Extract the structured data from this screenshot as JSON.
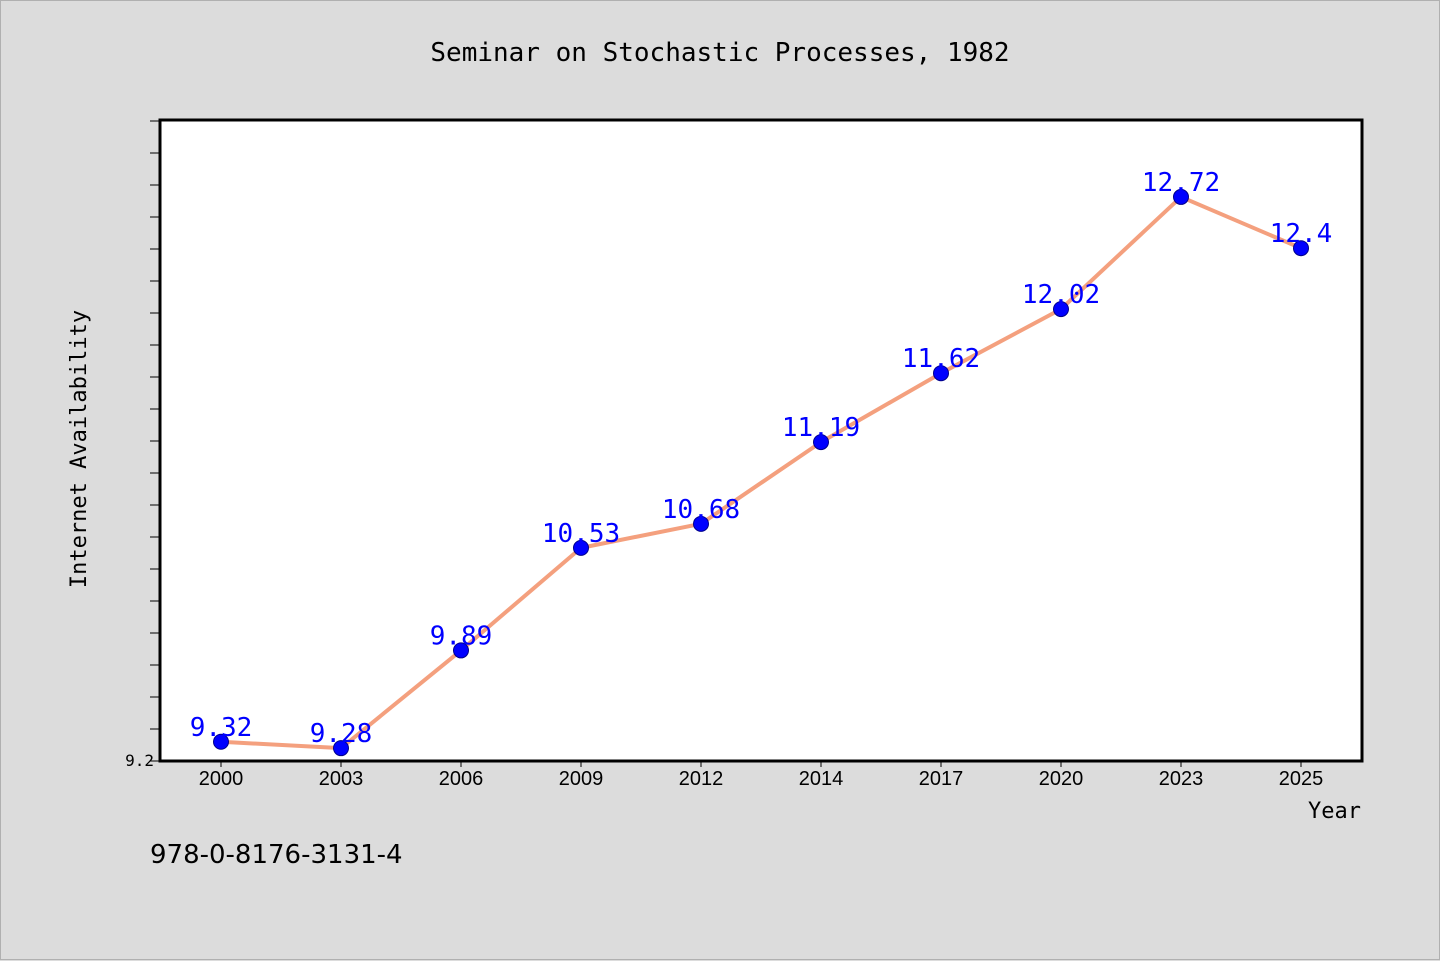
{
  "chart_data": {
    "type": "line",
    "title": "Seminar on Stochastic Processes, 1982",
    "xlabel": "Year",
    "ylabel": "Internet Availability",
    "categories": [
      "2000",
      "2003",
      "2006",
      "2009",
      "2012",
      "2014",
      "2017",
      "2020",
      "2023",
      "2025"
    ],
    "series": [
      {
        "values": [
          9.32,
          9.28,
          9.89,
          10.53,
          10.68,
          11.19,
          11.62,
          12.02,
          12.72,
          12.4
        ]
      }
    ],
    "y_tick_labels": [
      "9.2"
    ],
    "ylim": [
      9.2,
      13.2
    ],
    "grid": false,
    "data_labels": true,
    "line_color": "#f4a07e",
    "marker_color": "#0000ff",
    "label_color": "#0000ff"
  },
  "footer": {
    "isbn": "978-0-8176-3131-4"
  }
}
